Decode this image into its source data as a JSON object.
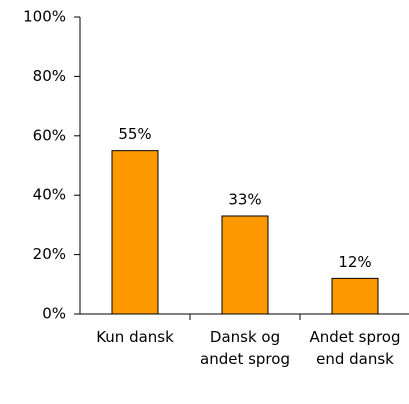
{
  "chart_data": {
    "type": "bar",
    "categories": [
      "Kun dansk",
      "Dansk og andet sprog",
      "Andet sprog end dansk"
    ],
    "values": [
      55,
      33,
      12
    ],
    "value_labels": [
      "55%",
      "33%",
      "12%"
    ],
    "color": "#ff9900",
    "ylim": [
      0,
      100
    ],
    "yticks": [
      {
        "value": 0,
        "label": "0%"
      },
      {
        "value": 20,
        "label": "20%"
      },
      {
        "value": 40,
        "label": "40%"
      },
      {
        "value": 60,
        "label": "60%"
      },
      {
        "value": 80,
        "label": "80%"
      },
      {
        "value": 100,
        "label": "100%"
      }
    ],
    "grid": false
  }
}
